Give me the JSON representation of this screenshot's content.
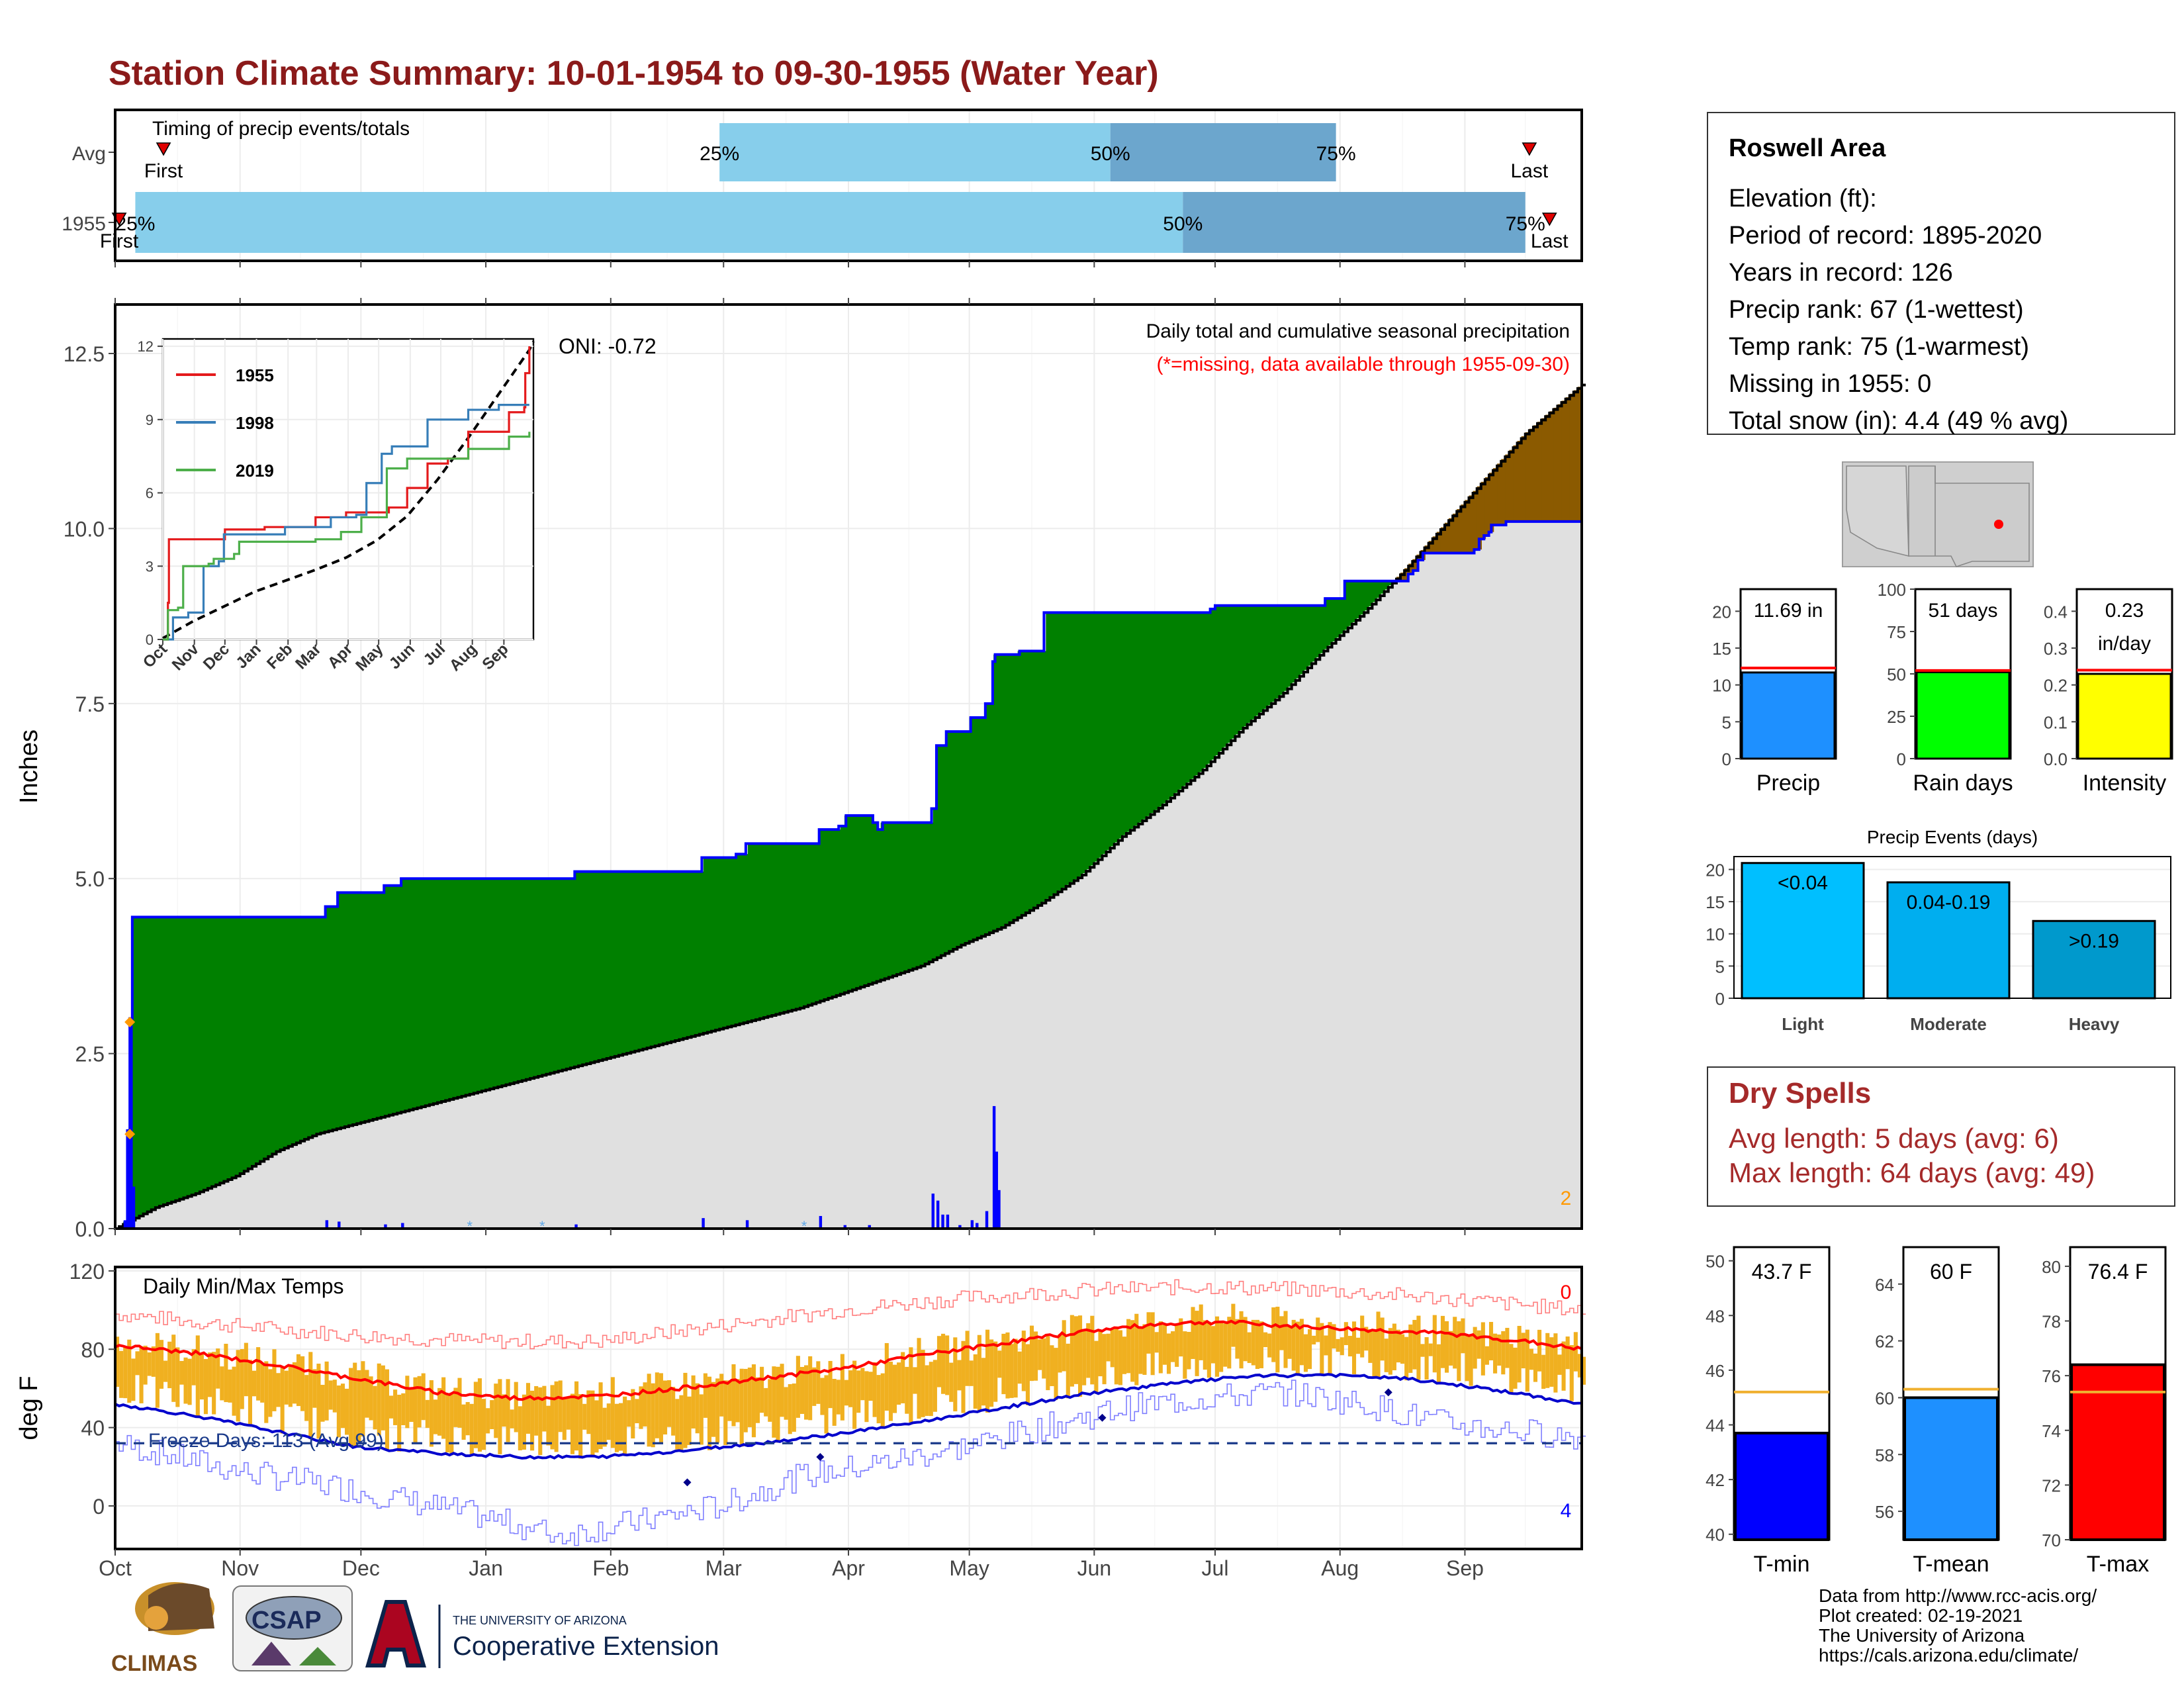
{
  "title": "Station Climate Summary: 10-01-1954 to 09-30-1955 (Water Year)",
  "timing": {
    "label": "Timing of precip events/totals",
    "rows": [
      {
        "name": "Avg",
        "first_day": 12,
        "q25_day": 150,
        "q50_day": 247,
        "q75_day": 303,
        "last_day": 351,
        "first_label": "First",
        "last_label": "Last",
        "q25_label": "25%",
        "q50_label": "50%",
        "q75_label": "75%"
      },
      {
        "name": "1955",
        "first_day": 1,
        "q25_day": 5,
        "q50_day": 265,
        "q75_day": 350,
        "last_day": 356,
        "first_label": "First",
        "last_label": "Last",
        "q25_label": "25%",
        "q50_label": "50%",
        "q75_label": "75%"
      }
    ]
  },
  "precip_panel": {
    "ylabel": "Inches",
    "y_ticks": [
      "0.0",
      "2.5",
      "5.0",
      "7.5",
      "10.0",
      "12.5"
    ],
    "ylim": [
      0,
      13.2
    ],
    "header": "Daily total and cumulative seasonal precipitation",
    "note": "(*=missing, data available through 1955-09-30)",
    "oni": "ONI: -0.72",
    "corner_count": "2",
    "avg_points": [
      [
        0,
        0.0
      ],
      [
        10,
        0.3
      ],
      [
        20,
        0.5
      ],
      [
        30,
        0.75
      ],
      [
        40,
        1.1
      ],
      [
        50,
        1.35
      ],
      [
        60,
        1.5
      ],
      [
        70,
        1.65
      ],
      [
        80,
        1.8
      ],
      [
        90,
        1.95
      ],
      [
        100,
        2.1
      ],
      [
        110,
        2.25
      ],
      [
        120,
        2.4
      ],
      [
        130,
        2.55
      ],
      [
        140,
        2.7
      ],
      [
        150,
        2.85
      ],
      [
        160,
        3.0
      ],
      [
        170,
        3.15
      ],
      [
        180,
        3.35
      ],
      [
        190,
        3.55
      ],
      [
        200,
        3.75
      ],
      [
        210,
        4.05
      ],
      [
        220,
        4.3
      ],
      [
        230,
        4.65
      ],
      [
        240,
        5.05
      ],
      [
        250,
        5.6
      ],
      [
        260,
        6.05
      ],
      [
        270,
        6.55
      ],
      [
        280,
        7.15
      ],
      [
        290,
        7.65
      ],
      [
        300,
        8.25
      ],
      [
        310,
        8.8
      ],
      [
        320,
        9.4
      ],
      [
        330,
        10.05
      ],
      [
        340,
        10.7
      ],
      [
        350,
        11.35
      ],
      [
        360,
        11.85
      ],
      [
        364,
        12.05
      ]
    ],
    "cum_steps": [
      [
        0,
        0.0
      ],
      [
        4,
        0.1
      ],
      [
        5,
        1.4
      ],
      [
        6,
        3.0
      ],
      [
        7,
        4.45
      ],
      [
        81,
        4.45
      ],
      [
        86,
        4.6
      ],
      [
        91,
        4.8
      ],
      [
        110,
        4.9
      ],
      [
        117,
        5.0
      ],
      [
        180,
        5.0
      ],
      [
        188,
        5.1
      ],
      [
        237,
        5.1
      ],
      [
        240,
        5.3
      ],
      [
        254,
        5.35
      ],
      [
        258,
        5.5
      ],
      [
        282,
        5.5
      ],
      [
        288,
        5.7
      ],
      [
        294,
        5.7
      ],
      [
        296,
        5.75
      ],
      [
        298,
        5.75
      ],
      [
        299,
        5.9
      ],
      [
        308,
        5.9
      ],
      [
        310,
        5.8
      ],
      [
        312,
        5.7
      ],
      [
        314,
        5.8
      ],
      [
        332,
        5.8
      ],
      [
        334,
        6.0
      ],
      [
        336,
        6.9
      ],
      [
        340,
        7.1
      ],
      [
        350,
        7.3
      ],
      [
        356,
        7.5
      ],
      [
        359,
        8.1
      ],
      [
        360,
        8.2
      ],
      [
        370,
        8.25
      ],
      [
        380,
        8.8
      ],
      [
        410,
        8.8
      ],
      [
        448,
        8.85
      ],
      [
        450,
        8.9
      ],
      [
        495,
        9.0
      ],
      [
        503,
        9.25
      ],
      [
        529,
        9.35
      ],
      [
        531,
        9.4
      ],
      [
        533,
        9.55
      ],
      [
        535,
        9.65
      ],
      [
        556,
        9.7
      ],
      [
        558,
        9.85
      ],
      [
        560,
        9.9
      ],
      [
        562,
        9.95
      ],
      [
        563,
        10.05
      ],
      [
        569,
        10.1
      ],
      [
        600,
        10.1
      ]
    ],
    "daily_bars": [
      [
        4,
        0.1
      ],
      [
        5,
        1.3
      ],
      [
        6,
        2.9
      ],
      [
        7,
        0.6
      ],
      [
        86,
        0.12
      ],
      [
        91,
        0.1
      ],
      [
        110,
        0.06
      ],
      [
        117,
        0.08
      ],
      [
        188,
        0.06
      ],
      [
        240,
        0.15
      ],
      [
        258,
        0.12
      ],
      [
        288,
        0.18
      ],
      [
        298,
        0.05
      ],
      [
        308,
        0.05
      ],
      [
        334,
        0.5
      ],
      [
        336,
        0.4
      ],
      [
        338,
        0.2
      ],
      [
        340,
        0.2
      ],
      [
        345,
        0.05
      ],
      [
        350,
        0.12
      ],
      [
        352,
        0.08
      ],
      [
        356,
        0.25
      ],
      [
        359,
        1.75
      ],
      [
        360,
        1.1
      ],
      [
        361,
        0.55
      ]
    ],
    "missing_markers": [
      [
        88,
        0.05
      ],
      [
        106,
        0.05
      ],
      [
        171,
        0.05
      ]
    ],
    "orange_points": [
      [
        6,
        2.95
      ],
      [
        6,
        1.35
      ]
    ]
  },
  "inset": {
    "y_ticks": [
      "0",
      "3",
      "6",
      "9",
      "12"
    ],
    "ylim": [
      0,
      12.3
    ],
    "x_ticks": [
      "Oct",
      "Nov",
      "Dec",
      "Jan",
      "Feb",
      "Mar",
      "Apr",
      "May",
      "Jun",
      "Jul",
      "Aug",
      "Sep"
    ],
    "series": [
      {
        "name": "1955",
        "color": "#e41a1c",
        "points": [
          [
            0,
            0
          ],
          [
            5,
            1.5
          ],
          [
            6,
            4.1
          ],
          [
            60,
            4.1
          ],
          [
            61,
            4.5
          ],
          [
            100,
            4.6
          ],
          [
            150,
            5.0
          ],
          [
            180,
            5.2
          ],
          [
            222,
            5.4
          ],
          [
            240,
            6.2
          ],
          [
            260,
            7.2
          ],
          [
            280,
            7.4
          ],
          [
            300,
            8.5
          ],
          [
            340,
            9.3
          ],
          [
            355,
            9.5
          ],
          [
            356,
            10.9
          ],
          [
            360,
            12.0
          ]
        ]
      },
      {
        "name": "1998",
        "color": "#377eb8",
        "points": [
          [
            0,
            0
          ],
          [
            10,
            0.9
          ],
          [
            25,
            1.1
          ],
          [
            40,
            3.0
          ],
          [
            55,
            3.2
          ],
          [
            60,
            4.3
          ],
          [
            120,
            4.6
          ],
          [
            165,
            5.0
          ],
          [
            190,
            5.1
          ],
          [
            200,
            6.4
          ],
          [
            215,
            7.6
          ],
          [
            225,
            7.9
          ],
          [
            260,
            9.0
          ],
          [
            300,
            9.4
          ],
          [
            330,
            9.6
          ],
          [
            360,
            9.6
          ]
        ]
      },
      {
        "name": "2019",
        "color": "#4daf4a",
        "points": [
          [
            0,
            0
          ],
          [
            5,
            1.2
          ],
          [
            15,
            1.3
          ],
          [
            20,
            3.0
          ],
          [
            45,
            3.1
          ],
          [
            50,
            3.3
          ],
          [
            70,
            3.5
          ],
          [
            75,
            4.0
          ],
          [
            150,
            4.1
          ],
          [
            175,
            4.4
          ],
          [
            195,
            5.0
          ],
          [
            220,
            7.0
          ],
          [
            240,
            7.4
          ],
          [
            300,
            7.8
          ],
          [
            340,
            8.3
          ],
          [
            360,
            8.5
          ]
        ]
      }
    ],
    "avg_points": [
      [
        0,
        0.05
      ],
      [
        30,
        0.75
      ],
      [
        60,
        1.35
      ],
      [
        90,
        1.95
      ],
      [
        120,
        2.4
      ],
      [
        150,
        2.85
      ],
      [
        180,
        3.35
      ],
      [
        210,
        4.05
      ],
      [
        240,
        5.05
      ],
      [
        270,
        6.55
      ],
      [
        300,
        8.25
      ],
      [
        330,
        10.05
      ],
      [
        360,
        11.85
      ],
      [
        364,
        12.2
      ]
    ]
  },
  "temp_panel": {
    "ylabel": "deg F",
    "y_ticks": [
      "0",
      "40",
      "80",
      "120"
    ],
    "ylim": [
      -22,
      122
    ],
    "label": "Daily Min/Max Temps",
    "freeze_label": "Freeze Days: 113 (Avg.99)",
    "freeze_line": 32,
    "top_count": "0",
    "bottom_count": "4",
    "record_high": [
      [
        0,
        98
      ],
      [
        30,
        92
      ],
      [
        60,
        87
      ],
      [
        90,
        84
      ],
      [
        120,
        84
      ],
      [
        150,
        92
      ],
      [
        180,
        100
      ],
      [
        210,
        106
      ],
      [
        240,
        110
      ],
      [
        270,
        112
      ],
      [
        300,
        110
      ],
      [
        330,
        106
      ],
      [
        364,
        100
      ]
    ],
    "avg_high": [
      [
        0,
        82
      ],
      [
        20,
        78
      ],
      [
        40,
        72
      ],
      [
        60,
        65
      ],
      [
        80,
        58
      ],
      [
        100,
        55
      ],
      [
        120,
        56
      ],
      [
        140,
        60
      ],
      [
        160,
        65
      ],
      [
        180,
        70
      ],
      [
        200,
        77
      ],
      [
        220,
        83
      ],
      [
        240,
        89
      ],
      [
        260,
        93
      ],
      [
        275,
        94
      ],
      [
        290,
        92
      ],
      [
        310,
        90
      ],
      [
        330,
        88
      ],
      [
        350,
        84
      ],
      [
        364,
        80
      ]
    ],
    "avg_low": [
      [
        0,
        52
      ],
      [
        20,
        46
      ],
      [
        40,
        38
      ],
      [
        60,
        30
      ],
      [
        80,
        27
      ],
      [
        100,
        25
      ],
      [
        120,
        25
      ],
      [
        140,
        28
      ],
      [
        160,
        32
      ],
      [
        180,
        37
      ],
      [
        200,
        43
      ],
      [
        220,
        50
      ],
      [
        240,
        57
      ],
      [
        260,
        62
      ],
      [
        280,
        66
      ],
      [
        300,
        67
      ],
      [
        320,
        65
      ],
      [
        340,
        60
      ],
      [
        364,
        52
      ]
    ],
    "record_low": [
      [
        0,
        32
      ],
      [
        30,
        18
      ],
      [
        60,
        8
      ],
      [
        90,
        -5
      ],
      [
        110,
        -15
      ],
      [
        130,
        -8
      ],
      [
        150,
        0
      ],
      [
        170,
        15
      ],
      [
        190,
        22
      ],
      [
        210,
        30
      ],
      [
        230,
        40
      ],
      [
        250,
        50
      ],
      [
        270,
        55
      ],
      [
        290,
        58
      ],
      [
        310,
        52
      ],
      [
        330,
        42
      ],
      [
        364,
        35
      ]
    ],
    "freeze_points": [
      [
        142,
        12
      ],
      [
        175,
        25
      ],
      [
        245,
        45
      ],
      [
        316,
        58
      ]
    ]
  },
  "x_months": {
    "labels": [
      "Oct",
      "Nov",
      "Dec",
      "Jan",
      "Feb",
      "Mar",
      "Apr",
      "May",
      "Jun",
      "Jul",
      "Aug",
      "Sep"
    ],
    "days": [
      0,
      31,
      61,
      92,
      123,
      151,
      182,
      212,
      243,
      273,
      304,
      335
    ]
  },
  "station": {
    "name": "Roswell Area",
    "lines": [
      "Elevation (ft):",
      "Period of record: 1895-2020",
      "Years in record: 126",
      "Precip rank: 67 (1-wettest)",
      "Temp rank: 75 (1-warmest)",
      "Missing in 1955: 0",
      "Total snow (in): 4.4 (49 % avg)"
    ]
  },
  "mini_bars": [
    {
      "label": "Precip",
      "value_text": "11.69 in",
      "value": 11.69,
      "avg": 12.3,
      "ymax": 23,
      "ticks": [
        "0",
        "5",
        "10",
        "15",
        "20"
      ],
      "tickvals": [
        0,
        5,
        10,
        15,
        20
      ],
      "color": "#1e90ff"
    },
    {
      "label": "Rain days",
      "value_text": "51 days",
      "value": 51,
      "avg": 52,
      "ymax": 100,
      "ticks": [
        "0",
        "25",
        "50",
        "75",
        "100"
      ],
      "tickvals": [
        0,
        25,
        50,
        75,
        100
      ],
      "color": "#00ff00"
    },
    {
      "label": "Intensity",
      "value_text": "0.23",
      "value_text2": "in/day",
      "value": 0.23,
      "avg": 0.24,
      "ymax": 0.46,
      "ticks": [
        "0.0",
        "0.1",
        "0.2",
        "0.3",
        "0.4"
      ],
      "tickvals": [
        0,
        0.1,
        0.2,
        0.3,
        0.4
      ],
      "color": "#ffff00"
    }
  ],
  "events": {
    "title": "Precip Events (days)",
    "ticks": [
      "0",
      "5",
      "10",
      "15",
      "20"
    ],
    "tickvals": [
      0,
      5,
      10,
      15,
      20
    ],
    "ymax": 22,
    "bars": [
      {
        "category": "Light",
        "label": "<0.04",
        "value": 21,
        "color": "#00bfff"
      },
      {
        "category": "Moderate",
        "label": "0.04-0.19",
        "value": 18,
        "color": "#00aeef"
      },
      {
        "category": "Heavy",
        "label": ">0.19",
        "value": 12,
        "color": "#0099cc"
      }
    ]
  },
  "dry_spells": {
    "title": "Dry Spells",
    "avg_line": "Avg length: 5 days (avg: 6)",
    "max_line": "Max length: 64 days (avg: 49)"
  },
  "temp_bars": [
    {
      "label": "T-min",
      "value_text": "43.7 F",
      "value": 43.7,
      "avg": 45.2,
      "ymin": 39.8,
      "ymax": 50.5,
      "ticks": [
        "40",
        "42",
        "44",
        "46",
        "48",
        "50"
      ],
      "tickvals": [
        40,
        42,
        44,
        46,
        48,
        50
      ],
      "color": "#0000ff"
    },
    {
      "label": "T-mean",
      "value_text": "60 F",
      "value": 60.0,
      "avg": 60.3,
      "ymin": 55.0,
      "ymax": 65.3,
      "ticks": [
        "56",
        "58",
        "60",
        "62",
        "64"
      ],
      "tickvals": [
        56,
        58,
        60,
        62,
        64
      ],
      "color": "#1e90ff"
    },
    {
      "label": "T-max",
      "value_text": "76.4 F",
      "value": 76.4,
      "avg": 75.4,
      "ymin": 70.0,
      "ymax": 80.7,
      "ticks": [
        "70",
        "72",
        "74",
        "76",
        "78",
        "80"
      ],
      "tickvals": [
        70,
        72,
        74,
        76,
        78,
        80
      ],
      "color": "#ff0000"
    }
  ],
  "footer": {
    "lines": [
      "Data from http://www.rcc-acis.org/",
      "Plot created: 02-19-2021",
      "The University of Arizona",
      "https://cals.arizona.edu/climate/"
    ],
    "climas": "CLIMAS",
    "csap": "CSAP",
    "ua_small": "THE UNIVERSITY OF ARIZONA",
    "ua_big": "Cooperative Extension"
  },
  "colors": {
    "title": "#8b1a1a",
    "below_avg_fill": "#008000",
    "above_avg_fill": "#8b5a00",
    "avg_fill": "#e0e0e0",
    "cum_line": "#0000ff",
    "bar_light": "#87ceeb",
    "bar_dark": "#6ca6cd",
    "temp_bar": "#f0b020",
    "avg_high_line": "#ff0000",
    "avg_low_line": "#0000cc",
    "dry_spell": "#a52a2a"
  }
}
